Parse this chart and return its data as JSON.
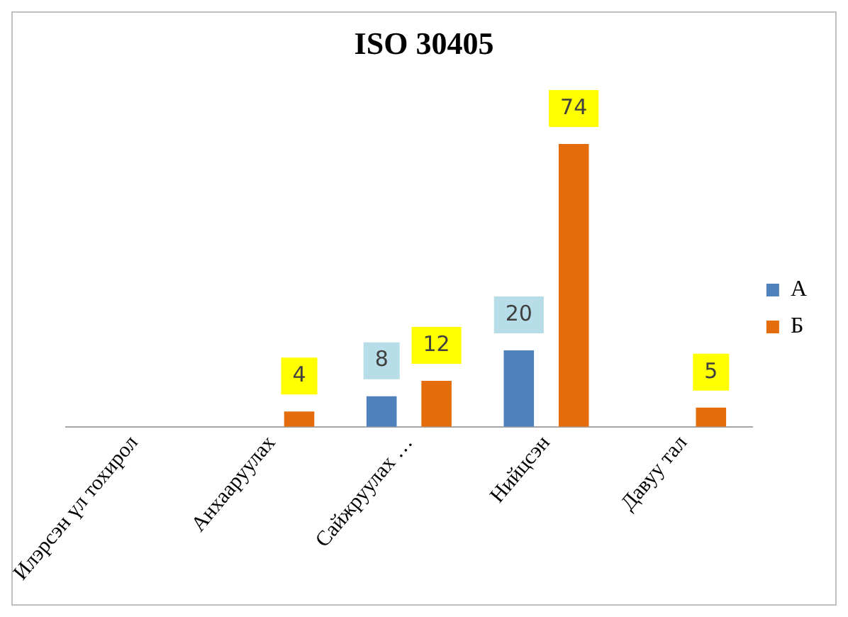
{
  "chart_data": {
    "type": "bar",
    "title": "ISO 30405",
    "categories": [
      "Илэрсэн үл тохирол",
      "Анхааруулах",
      "Сайжруулах …",
      "Нийцсэн",
      "Давуу тал"
    ],
    "series": [
      {
        "name": "А",
        "color": "#4f81bd",
        "values": [
          0,
          0,
          8,
          20,
          0
        ],
        "value_labels": [
          null,
          null,
          "8",
          "20",
          null
        ]
      },
      {
        "name": "Б",
        "color": "#e46c0a",
        "values": [
          0,
          4,
          12,
          74,
          5
        ],
        "value_labels": [
          null,
          "4",
          "12",
          "74",
          "5"
        ]
      }
    ],
    "legend": "right",
    "grid": false
  }
}
